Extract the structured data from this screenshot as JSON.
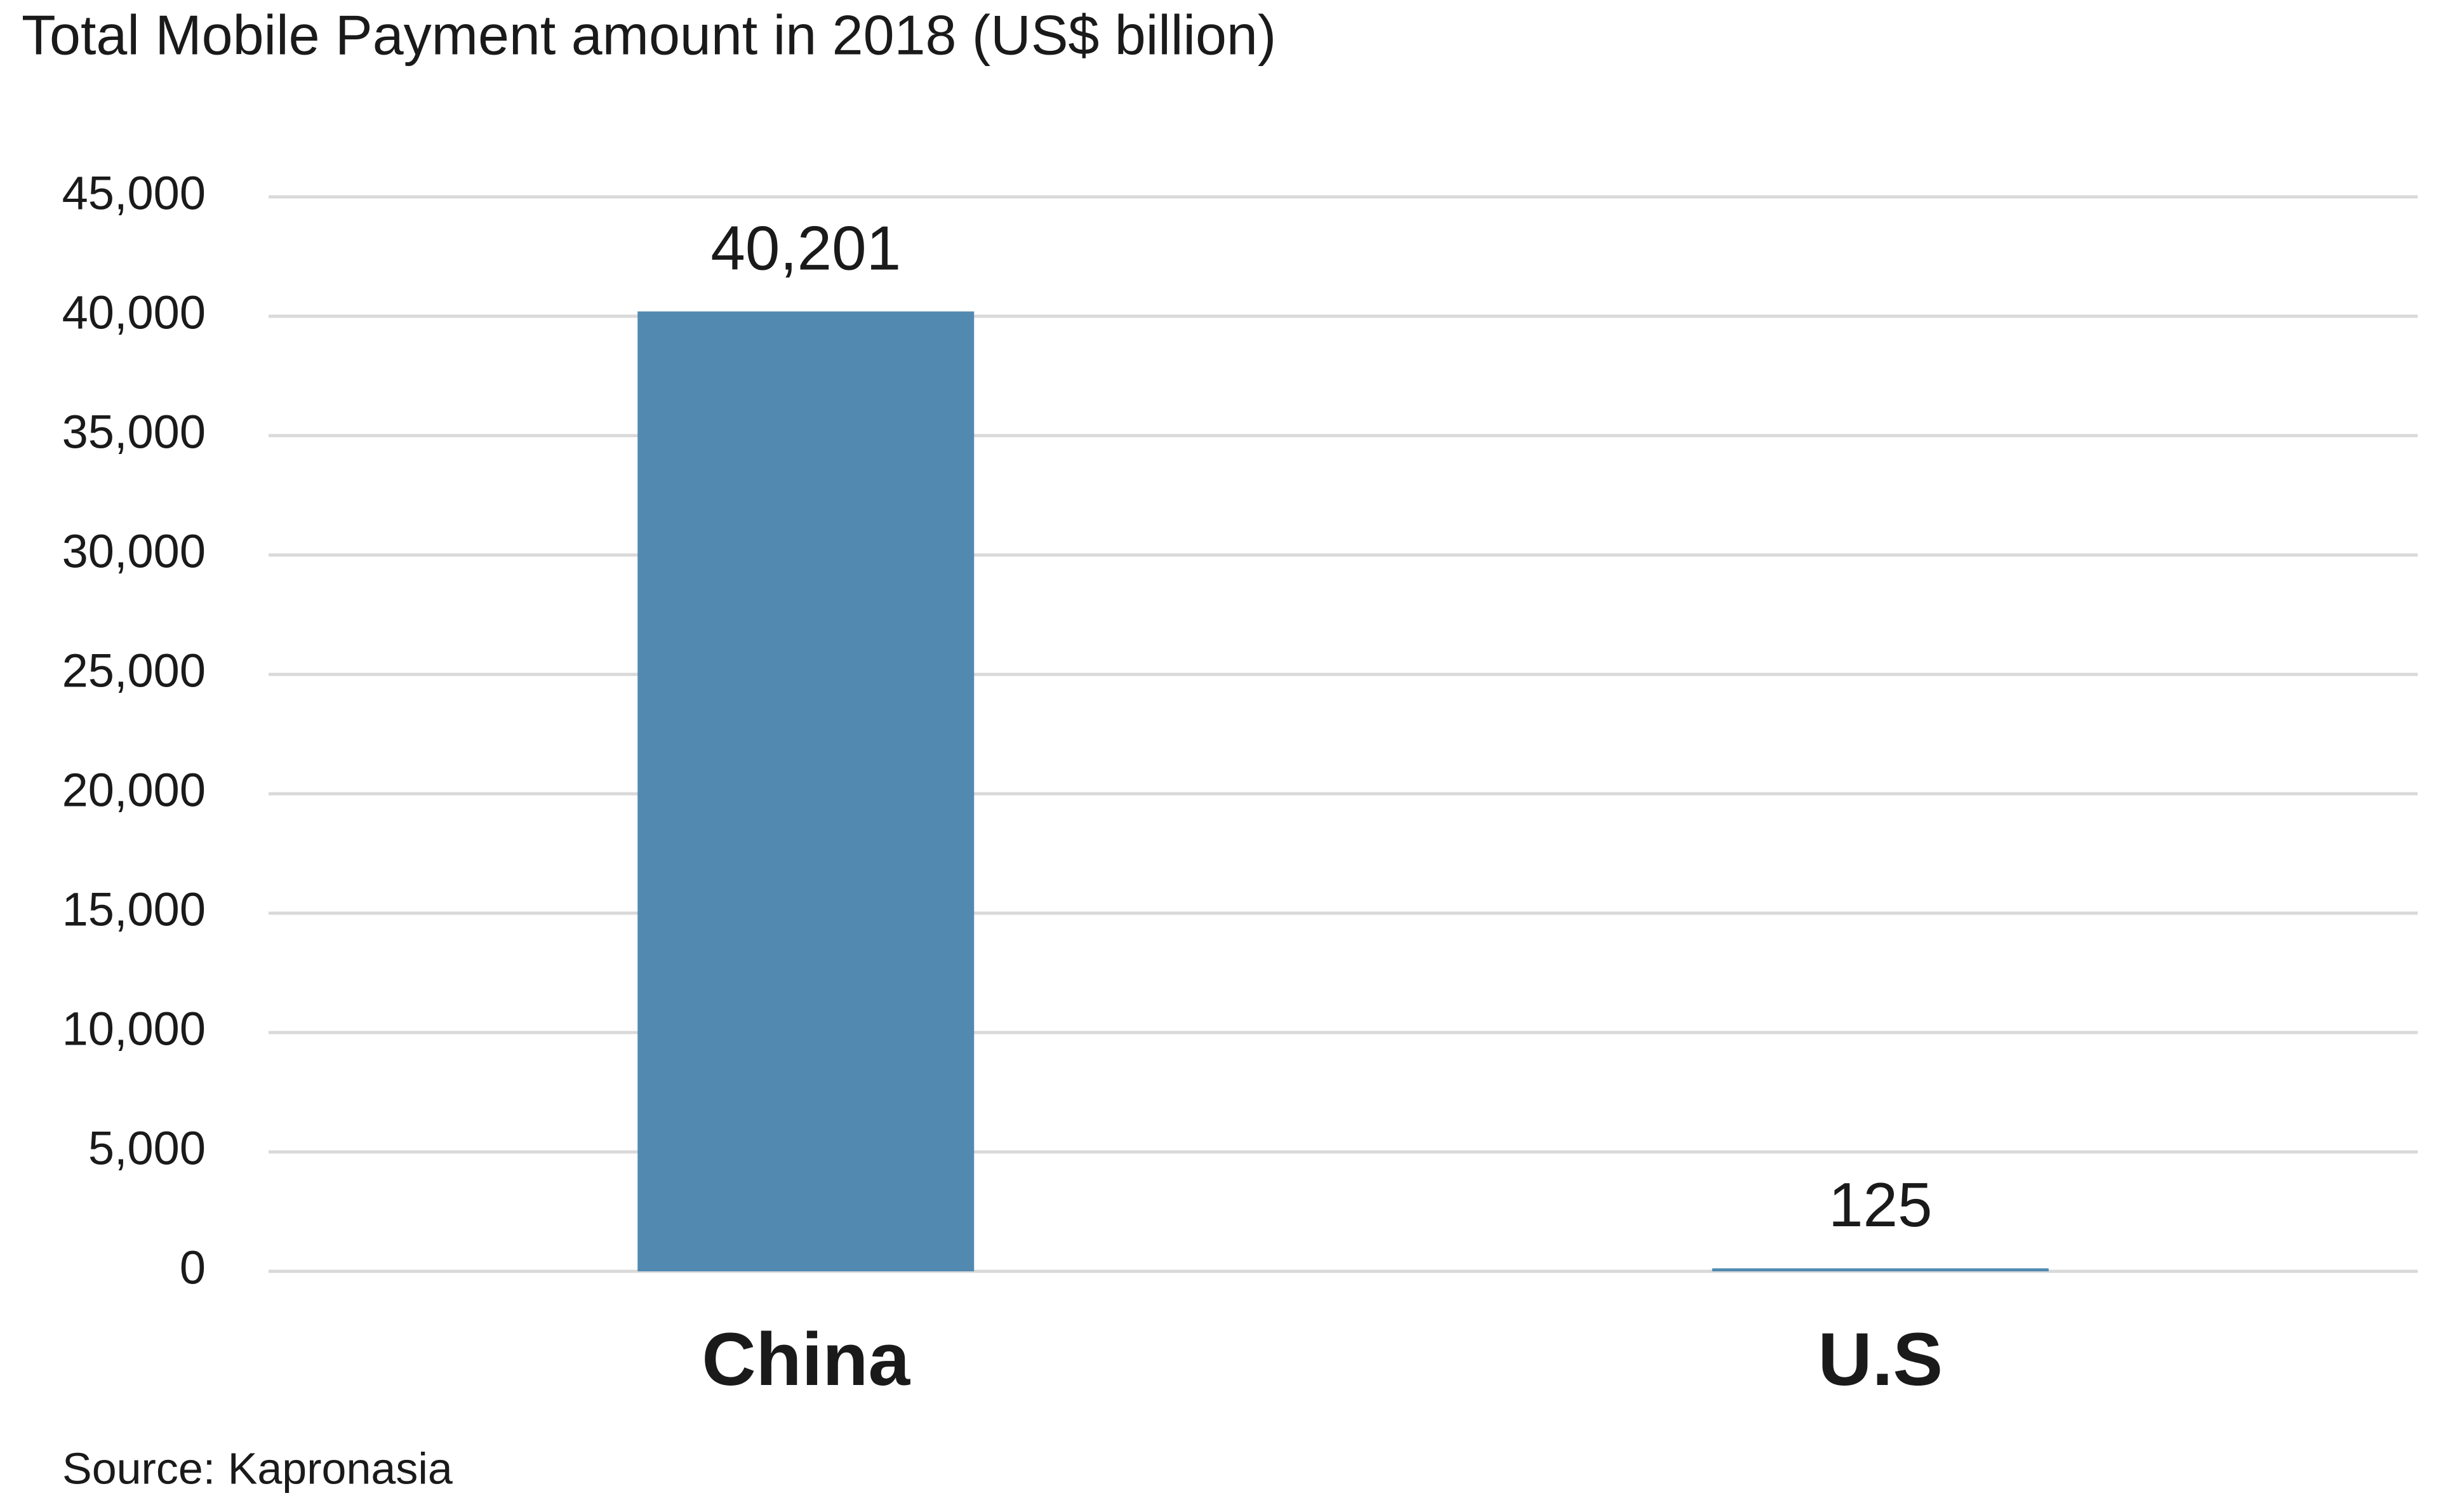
{
  "chart_data": {
    "type": "bar",
    "title": "Total Mobile Payment amount in 2018 (US$ billion)",
    "categories": [
      "China",
      "U.S"
    ],
    "values": [
      40201,
      125
    ],
    "value_labels": [
      "40,201",
      "125"
    ],
    "color": "#5289b0",
    "ylim": [
      0,
      45000
    ],
    "yticks": [
      0,
      {
        "value": 5000,
        "label": "5,000"
      },
      {
        "value": 10000,
        "label": "10,000"
      },
      {
        "value": 15000,
        "label": "15,000"
      },
      {
        "value": 20000,
        "label": "20,000"
      },
      {
        "value": 25000,
        "label": "25,000"
      },
      {
        "value": 30000,
        "label": "30,000"
      },
      {
        "value": 35000,
        "label": "35,000"
      },
      {
        "value": 40000,
        "label": "40,000"
      },
      {
        "value": 45000,
        "label": "45,000"
      }
    ],
    "grid": true,
    "source": "Source: Kapronasia"
  }
}
